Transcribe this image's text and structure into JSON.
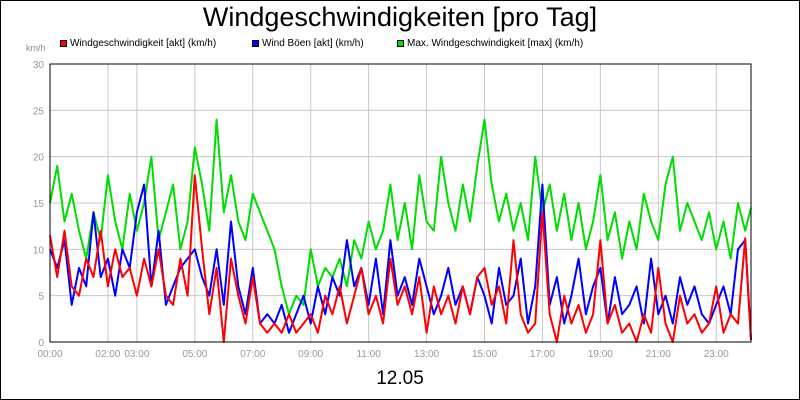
{
  "chart_data": {
    "type": "line",
    "title": "Windgeschwindigkeiten [pro Tag]",
    "date_label": "12.05",
    "unit_label": "km/h",
    "ylim": [
      0,
      30
    ],
    "yticks": [
      0,
      5,
      10,
      15,
      20,
      25,
      30
    ],
    "xlim": [
      0,
      24.2
    ],
    "xticks": [
      {
        "pos": 0,
        "label": "00:00"
      },
      {
        "pos": 2,
        "label": "02:00"
      },
      {
        "pos": 3,
        "label": "03:00"
      },
      {
        "pos": 5,
        "label": "05:00"
      },
      {
        "pos": 7,
        "label": "07:00"
      },
      {
        "pos": 9,
        "label": "09:00"
      },
      {
        "pos": 11,
        "label": "11:00"
      },
      {
        "pos": 13,
        "label": "13:00"
      },
      {
        "pos": 15,
        "label": "15:00"
      },
      {
        "pos": 17,
        "label": "17:00"
      },
      {
        "pos": 19,
        "label": "19:00"
      },
      {
        "pos": 21,
        "label": "21:00"
      },
      {
        "pos": 23,
        "label": "23:00"
      }
    ],
    "grid": true,
    "legend_position": "top",
    "series": [
      {
        "name": "Windgeschwindigkeit [akt] (km/h)",
        "color": "#ff0000",
        "x": [
          0,
          0.25,
          0.5,
          0.75,
          1,
          1.25,
          1.5,
          1.75,
          2,
          2.25,
          2.5,
          2.75,
          3,
          3.25,
          3.5,
          3.75,
          4,
          4.25,
          4.5,
          4.75,
          5,
          5.25,
          5.5,
          5.75,
          6,
          6.25,
          6.5,
          6.75,
          7,
          7.25,
          7.5,
          7.75,
          8,
          8.25,
          8.5,
          8.75,
          9,
          9.25,
          9.5,
          9.75,
          10,
          10.25,
          10.5,
          10.75,
          11,
          11.25,
          11.5,
          11.75,
          12,
          12.25,
          12.5,
          12.75,
          13,
          13.25,
          13.5,
          13.75,
          14,
          14.25,
          14.5,
          14.75,
          15,
          15.25,
          15.5,
          15.75,
          16,
          16.25,
          16.5,
          16.75,
          17,
          17.25,
          17.5,
          17.75,
          18,
          18.25,
          18.5,
          18.75,
          19,
          19.25,
          19.5,
          19.75,
          20,
          20.25,
          20.5,
          20.75,
          21,
          21.25,
          21.5,
          21.75,
          22,
          22.25,
          22.5,
          22.75,
          23,
          23.25,
          23.5,
          23.75,
          24,
          24.2
        ],
        "values": [
          11.5,
          7,
          12,
          6,
          5,
          9,
          7,
          12,
          6,
          10,
          7,
          8,
          5,
          9,
          6,
          10,
          5,
          4,
          9,
          5,
          18,
          10,
          3,
          8,
          0,
          9,
          5,
          2,
          7,
          2,
          1,
          2,
          1,
          3,
          1,
          2,
          3,
          1,
          5,
          3,
          6,
          2,
          5,
          8,
          3,
          5,
          2,
          9,
          4,
          6,
          3,
          7,
          1,
          6,
          3,
          5,
          2,
          6,
          3,
          7,
          8,
          4,
          6,
          2,
          11,
          3,
          1,
          2,
          14,
          3,
          0,
          5,
          2,
          4,
          1,
          3,
          11,
          2,
          4,
          1,
          2,
          0,
          3,
          1,
          8,
          2,
          0,
          5,
          2,
          3,
          1,
          2,
          6,
          1,
          3,
          2,
          11.2,
          0.2
        ]
      },
      {
        "name": "Wind Böen [akt] (km/h)",
        "color": "#0000ff",
        "x": [
          0,
          0.25,
          0.5,
          0.75,
          1,
          1.25,
          1.5,
          1.75,
          2,
          2.25,
          2.5,
          2.75,
          3,
          3.25,
          3.5,
          3.75,
          4,
          4.25,
          4.5,
          4.75,
          5,
          5.25,
          5.5,
          5.75,
          6,
          6.25,
          6.5,
          6.75,
          7,
          7.25,
          7.5,
          7.75,
          8,
          8.25,
          8.5,
          8.75,
          9,
          9.25,
          9.5,
          9.75,
          10,
          10.25,
          10.5,
          10.75,
          11,
          11.25,
          11.5,
          11.75,
          12,
          12.25,
          12.5,
          12.75,
          13,
          13.25,
          13.5,
          13.75,
          14,
          14.25,
          14.5,
          14.75,
          15,
          15.25,
          15.5,
          15.75,
          16,
          16.25,
          16.5,
          16.75,
          17,
          17.25,
          17.5,
          17.75,
          18,
          18.25,
          18.5,
          18.75,
          19,
          19.25,
          19.5,
          19.75,
          20,
          20.25,
          20.5,
          20.75,
          21,
          21.25,
          21.5,
          21.75,
          22,
          22.25,
          22.5,
          22.75,
          23,
          23.25,
          23.5,
          23.75,
          24,
          24.2
        ],
        "values": [
          10,
          8,
          11,
          4,
          8,
          6,
          14,
          7,
          9,
          5,
          10,
          8,
          14,
          17,
          6,
          12,
          4,
          6,
          8,
          9,
          10,
          7,
          5,
          10,
          4,
          13,
          6,
          3,
          8,
          2,
          3,
          2,
          4,
          1,
          3,
          5,
          2,
          6,
          3,
          7,
          5,
          11,
          6,
          8,
          4,
          9,
          3,
          11,
          5,
          7,
          4,
          9,
          6,
          3,
          5,
          8,
          4,
          6,
          3,
          7,
          5,
          2,
          8,
          4,
          5,
          9,
          2,
          6,
          17,
          4,
          7,
          2,
          5,
          9,
          3,
          6,
          8,
          2,
          7,
          3,
          4,
          6,
          2,
          9,
          3,
          5,
          2,
          7,
          4,
          6,
          3,
          2,
          4,
          6,
          3,
          10,
          11,
          0.2
        ]
      },
      {
        "name": "Max. Windgeschwindigkeit [max] (km/h)",
        "color": "#00dd00",
        "x": [
          0,
          0.25,
          0.5,
          0.75,
          1,
          1.25,
          1.5,
          1.75,
          2,
          2.25,
          2.5,
          2.75,
          3,
          3.25,
          3.5,
          3.75,
          4,
          4.25,
          4.5,
          4.75,
          5,
          5.25,
          5.5,
          5.75,
          6,
          6.25,
          6.5,
          6.75,
          7,
          7.25,
          7.5,
          7.75,
          8,
          8.25,
          8.5,
          8.75,
          9,
          9.25,
          9.5,
          9.75,
          10,
          10.25,
          10.5,
          10.75,
          11,
          11.25,
          11.5,
          11.75,
          12,
          12.25,
          12.5,
          12.75,
          13,
          13.25,
          13.5,
          13.75,
          14,
          14.25,
          14.5,
          14.75,
          15,
          15.25,
          15.5,
          15.75,
          16,
          16.25,
          16.5,
          16.75,
          17,
          17.25,
          17.5,
          17.75,
          18,
          18.25,
          18.5,
          18.75,
          19,
          19.25,
          19.5,
          19.75,
          20,
          20.25,
          20.5,
          20.75,
          21,
          21.25,
          21.5,
          21.75,
          22,
          22.25,
          22.5,
          22.75,
          23,
          23.25,
          23.5,
          23.75,
          24,
          24.2
        ],
        "values": [
          15,
          19,
          13,
          16,
          12,
          9,
          14,
          11,
          18,
          13,
          10,
          16,
          12,
          15,
          20,
          11,
          14,
          17,
          10,
          13,
          21,
          17,
          12,
          24,
          14,
          18,
          13,
          11,
          16,
          14,
          12,
          10,
          6,
          3,
          5,
          4,
          10,
          6,
          8,
          7,
          9,
          6,
          11,
          9,
          13,
          10,
          12,
          17,
          11,
          15,
          10,
          18,
          13,
          12,
          20,
          15,
          12,
          17,
          13,
          19,
          24,
          17,
          13,
          16,
          12,
          15,
          11,
          20,
          14,
          17,
          12,
          16,
          11,
          15,
          10,
          13,
          18,
          11,
          14,
          9,
          13,
          10,
          16,
          13,
          11,
          17,
          20,
          12,
          15,
          13,
          11,
          14,
          10,
          13,
          9,
          15,
          12,
          14.5
        ]
      }
    ]
  }
}
